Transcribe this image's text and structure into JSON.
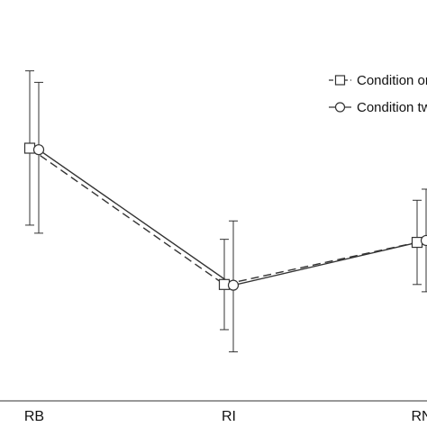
{
  "chart_data": {
    "type": "line",
    "categories": [
      "RB",
      "RI",
      "RN"
    ],
    "ylim": [
      0,
      1
    ],
    "grid": false,
    "legend_position": "top-right",
    "series": [
      {
        "name": "Condition on",
        "marker": "square",
        "line_style": "dashed",
        "color": "#333333",
        "values": [
          0.66,
          0.304,
          0.414
        ],
        "error_low": [
          0.459,
          0.186,
          0.304
        ],
        "error_high": [
          0.862,
          0.422,
          0.524
        ]
      },
      {
        "name": "Condition tw",
        "marker": "circle",
        "line_style": "solid",
        "color": "#333333",
        "values": [
          0.656,
          0.302,
          0.419
        ],
        "error_low": [
          0.438,
          0.128,
          0.285
        ],
        "error_high": [
          0.832,
          0.47,
          0.553
        ]
      }
    ]
  }
}
